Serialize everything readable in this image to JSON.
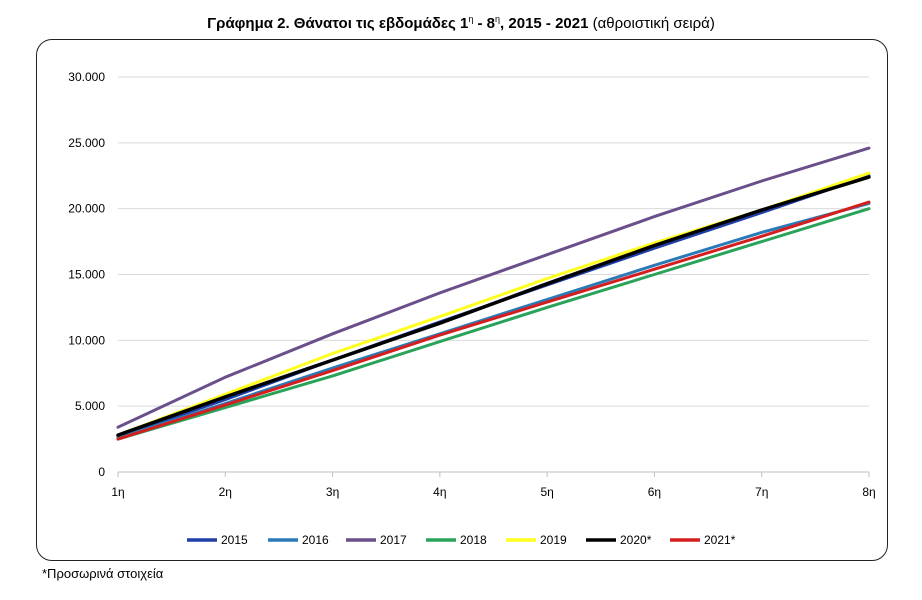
{
  "header": {
    "title_bold": "Γράφημα 2. Θάνατοι τις εβδομάδες 1",
    "sup1": "η",
    "mid": " - 8",
    "sup2": "η",
    "title_bold_end": ", 2015 - 2021",
    "title_normal": " (αθροιστική σειρά)"
  },
  "footnote": "*Προσωρινά στοιχεία",
  "colors": {
    "2015": "#1f3ea8",
    "2016": "#2a7ab8",
    "2017": "#6a4f8a",
    "2018": "#2aa35a",
    "2019": "#ffff1f",
    "2020*": "#000000",
    "2021*": "#d41f1f"
  },
  "chart_data": {
    "type": "line",
    "title": "Γράφημα 2. Θάνατοι τις εβδομάδες 1η - 8η, 2015 - 2021 (αθροιστική σειρά)",
    "xlabel": "",
    "ylabel": "",
    "categories": [
      "1η",
      "2η",
      "3η",
      "4η",
      "5η",
      "6η",
      "7η",
      "8η"
    ],
    "ylim": [
      0,
      30000
    ],
    "yticks": [
      0,
      5000,
      10000,
      15000,
      20000,
      25000,
      30000
    ],
    "ytick_labels": [
      "0",
      "5.000",
      "10.000",
      "15.000",
      "20.000",
      "25.000",
      "30.000"
    ],
    "grid": "horizontal",
    "legend": "bottom",
    "series": [
      {
        "name": "2015",
        "values": [
          2700,
          5500,
          8500,
          11400,
          14200,
          17000,
          19700,
          22500
        ]
      },
      {
        "name": "2016",
        "values": [
          2600,
          5200,
          7900,
          10500,
          13100,
          15700,
          18200,
          20400
        ]
      },
      {
        "name": "2017",
        "values": [
          3400,
          7200,
          10500,
          13600,
          16500,
          19400,
          22100,
          24600
        ]
      },
      {
        "name": "2018",
        "values": [
          2500,
          4900,
          7300,
          9900,
          12500,
          15000,
          17500,
          20000
        ]
      },
      {
        "name": "2019",
        "values": [
          2800,
          5900,
          9000,
          11800,
          14700,
          17400,
          19900,
          22700
        ]
      },
      {
        "name": "2020*",
        "values": [
          2800,
          5700,
          8500,
          11300,
          14300,
          17200,
          19900,
          22400
        ]
      },
      {
        "name": "2021*",
        "values": [
          2500,
          5100,
          7700,
          10400,
          12900,
          15400,
          17900,
          20500
        ]
      }
    ]
  }
}
